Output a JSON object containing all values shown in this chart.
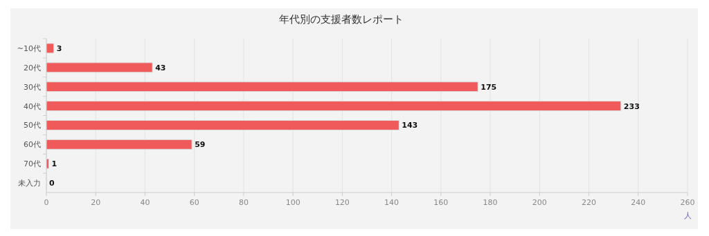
{
  "chart_data": {
    "type": "bar",
    "orientation": "horizontal",
    "title": "年代別の支援者数レポート",
    "xlabel": "人",
    "categories": [
      "~10代",
      "20代",
      "30代",
      "40代",
      "50代",
      "60代",
      "70代",
      "未入力"
    ],
    "values": [
      3,
      43,
      175,
      233,
      143,
      59,
      1,
      0
    ],
    "color": "#f05a5a",
    "xlim": [
      0,
      260
    ],
    "xticks": [
      0,
      20,
      40,
      60,
      80,
      100,
      120,
      140,
      160,
      180,
      200,
      220,
      240,
      260
    ],
    "grid": "x",
    "data_labels": true
  }
}
